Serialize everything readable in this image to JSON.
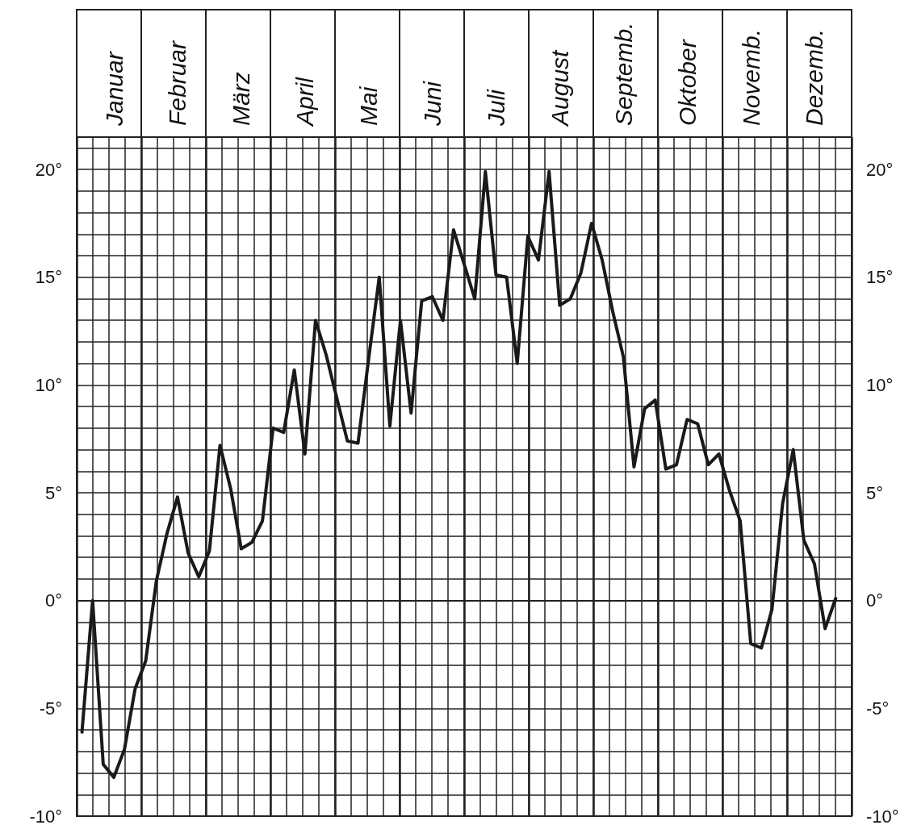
{
  "chart_data": {
    "type": "line",
    "categories": [
      null,
      null,
      null,
      "Januar",
      null,
      null,
      null,
      null,
      null,
      "Februar",
      null,
      null,
      null,
      null,
      null,
      "März",
      null,
      null,
      null,
      null,
      null,
      "April",
      null,
      null,
      null,
      null,
      null,
      "Mai",
      null,
      null,
      null,
      null,
      null,
      "Juni",
      null,
      null,
      null,
      null,
      null,
      "Juli",
      null,
      null,
      null,
      null,
      null,
      "August",
      null,
      null,
      null,
      null,
      null,
      "Septemb.",
      null,
      null,
      null,
      null,
      null,
      "Oktober",
      null,
      null,
      null,
      null,
      null,
      "Novemb.",
      null,
      null,
      null,
      null,
      null,
      "Dezemb.",
      null,
      null,
      null
    ],
    "series": [
      {
        "color": "#1a1a1a",
        "values": [
          -6.1,
          0.0,
          -7.6,
          -8.2,
          -6.9,
          -4.1,
          -2.8,
          0.9,
          3.1,
          4.8,
          2.2,
          1.1,
          2.3,
          7.2,
          5.2,
          2.4,
          2.7,
          3.7,
          8.0,
          7.8,
          10.7,
          6.8,
          13.0,
          11.4,
          9.4,
          7.4,
          7.3,
          11.2,
          15.0,
          8.1,
          13.0,
          8.7,
          13.9,
          14.1,
          13.0,
          17.2,
          15.6,
          14.0,
          19.9,
          15.1,
          15.0,
          11.0,
          16.9,
          15.8,
          19.9,
          13.7,
          14.0,
          15.2,
          17.5,
          15.8,
          13.4,
          11.3,
          6.2,
          8.9,
          9.3,
          6.1,
          6.3,
          8.4,
          8.2,
          6.3,
          6.8,
          5.1,
          3.7,
          -2.0,
          -2.2,
          -0.4,
          4.5,
          7.0,
          2.8,
          1.7,
          -1.3,
          0.1,
          null
        ]
      }
    ],
    "ylim": [
      -10,
      21.5
    ],
    "yticks": [
      {
        "value": -10,
        "label": "-10°"
      },
      {
        "value": -5,
        "label": "-5°"
      },
      {
        "value": 0,
        "label": "0°"
      },
      {
        "value": 5,
        "label": "5°"
      },
      {
        "value": 10,
        "label": "10°"
      },
      {
        "value": 15,
        "label": "15°"
      },
      {
        "value": 20,
        "label": "20°"
      }
    ],
    "y2lim": [
      -10,
      21.5
    ],
    "y2ticks": [
      {
        "value": -10,
        "label": "-10°"
      },
      {
        "value": -5,
        "label": "-5°"
      },
      {
        "value": 0,
        "label": "0°"
      },
      {
        "value": 5,
        "label": "5°"
      },
      {
        "value": 10,
        "label": "10°"
      },
      {
        "value": 15,
        "label": "15°"
      },
      {
        "value": 20,
        "label": "20°"
      }
    ],
    "grid": true,
    "marker": "none",
    "line_style": "solid"
  }
}
